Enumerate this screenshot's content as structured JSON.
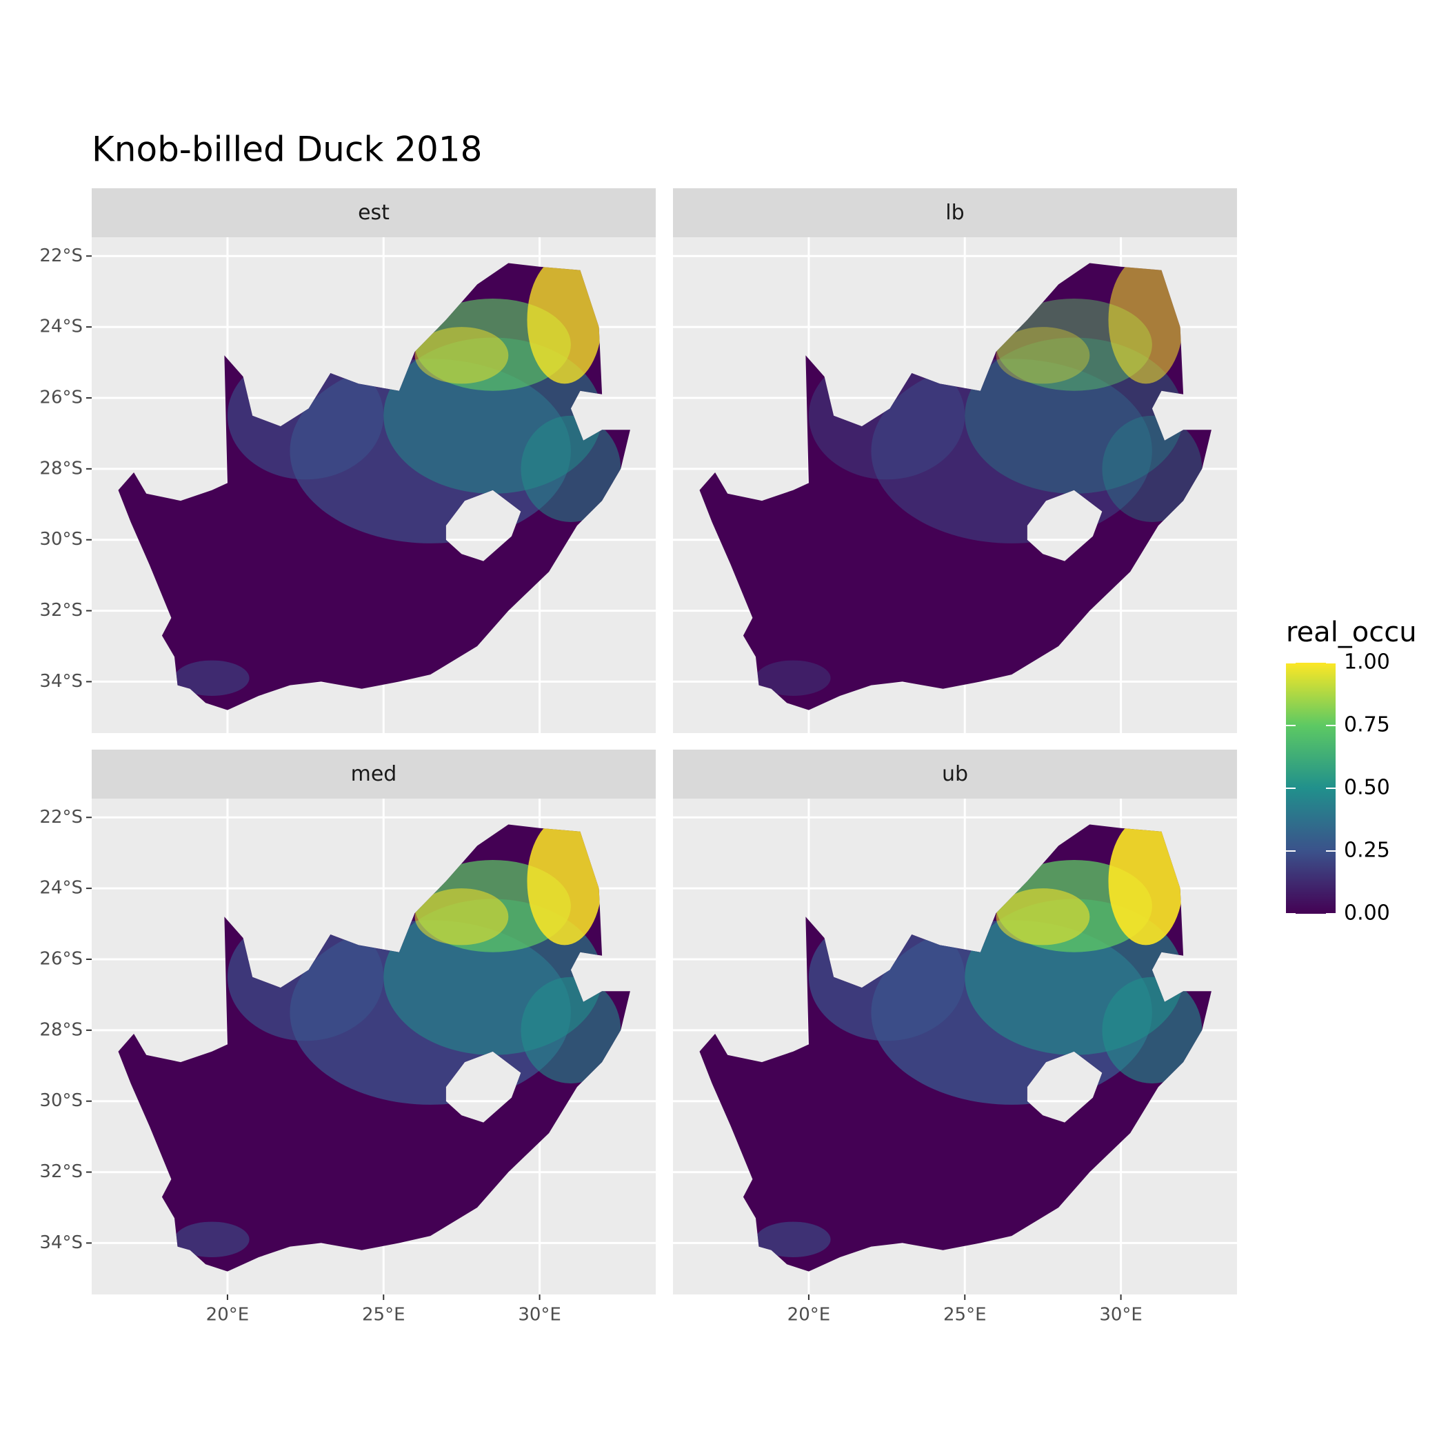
{
  "chart_data": {
    "type": "map",
    "title": "Knob-billed Duck 2018",
    "facets": [
      "est",
      "lb",
      "med",
      "ub"
    ],
    "xlim": [
      15.65,
      33.72
    ],
    "ylim": [
      -35.45,
      -21.47
    ],
    "xticks": [
      {
        "value": 20,
        "label": "20°E"
      },
      {
        "value": 25,
        "label": "25°E"
      },
      {
        "value": 30,
        "label": "30°E"
      }
    ],
    "yticks": [
      {
        "value": -22,
        "label": "22°S"
      },
      {
        "value": -24,
        "label": "24°S"
      },
      {
        "value": -26,
        "label": "26°S"
      },
      {
        "value": -28,
        "label": "28°S"
      },
      {
        "value": -30,
        "label": "30°S"
      },
      {
        "value": -32,
        "label": "32°S"
      },
      {
        "value": -34,
        "label": "34°S"
      }
    ],
    "grid": true,
    "legend": {
      "title": "real_occu",
      "lim": [
        0,
        1
      ],
      "ticks": [
        {
          "value": 0,
          "label": "0.00"
        },
        {
          "value": 0.25,
          "label": "0.25"
        },
        {
          "value": 0.5,
          "label": "0.50"
        },
        {
          "value": 0.75,
          "label": "0.75"
        },
        {
          "value": 1,
          "label": "1.00"
        }
      ],
      "colors": [
        "#440154",
        "#3b528b",
        "#21908c",
        "#5dc963",
        "#fde725"
      ]
    }
  }
}
